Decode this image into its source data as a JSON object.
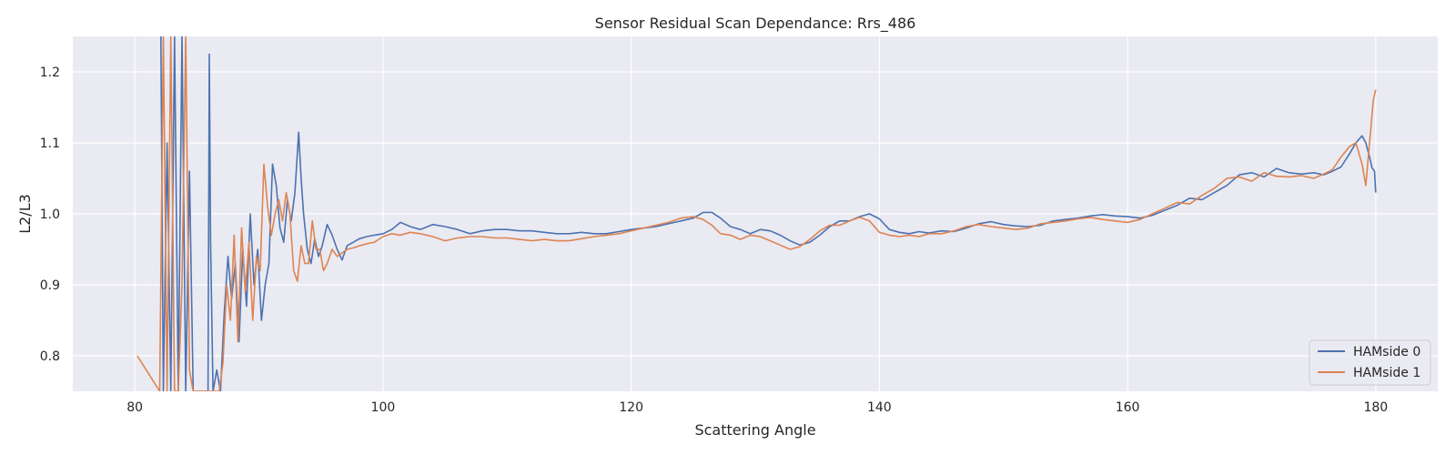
{
  "chart_data": {
    "type": "line",
    "title": "Sensor Residual Scan Dependance: Rrs_486",
    "xlabel": "Scattering Angle",
    "ylabel": "L2/L3",
    "xlim": [
      75,
      185
    ],
    "ylim": [
      0.75,
      1.25
    ],
    "xticks": [
      80,
      100,
      120,
      140,
      160,
      180
    ],
    "yticks": [
      0.8,
      0.9,
      1.0,
      1.1,
      1.2
    ],
    "grid": true,
    "legend_position": "lower right",
    "series": [
      {
        "name": "HAMside 0",
        "color": "#4c72b0",
        "x": [
          82.1,
          82.3,
          82.6,
          82.9,
          83.2,
          83.5,
          83.8,
          84.1,
          84.4,
          84.7,
          85.0,
          85.3,
          85.6,
          85.9,
          86.0,
          86.1,
          86.3,
          86.6,
          86.9,
          87.2,
          87.5,
          87.8,
          88.1,
          88.4,
          88.7,
          89.0,
          89.3,
          89.6,
          89.9,
          90.2,
          90.5,
          90.8,
          91.1,
          91.4,
          91.7,
          92.0,
          92.3,
          92.6,
          92.9,
          93.2,
          93.4,
          93.6,
          93.9,
          94.2,
          94.5,
          94.8,
          95.1,
          95.5,
          95.9,
          96.3,
          96.7,
          97.1,
          97.6,
          98.1,
          98.7,
          99.3,
          100.0,
          100.7,
          101.4,
          102.2,
          103.0,
          104.0,
          105.0,
          106.0,
          107.0,
          108.0,
          109.0,
          110.0,
          111.0,
          112.0,
          113.0,
          114.0,
          115.0,
          116.0,
          117.0,
          118.0,
          119.0,
          120.0,
          121.0,
          122.0,
          123.0,
          124.0,
          125.0,
          125.8,
          126.5,
          127.2,
          128.0,
          128.8,
          129.6,
          130.4,
          131.2,
          132.0,
          132.8,
          133.6,
          134.4,
          135.2,
          136.0,
          136.8,
          137.6,
          138.4,
          139.2,
          140.0,
          140.8,
          141.6,
          142.4,
          143.2,
          144.0,
          145.0,
          146.0,
          147.0,
          148.0,
          149.0,
          150.0,
          151.0,
          152.0,
          153.0,
          154.0,
          155.0,
          156.0,
          157.0,
          158.0,
          159.0,
          160.0,
          161.0,
          162.0,
          163.0,
          164.0,
          165.0,
          166.0,
          167.0,
          168.0,
          169.0,
          170.0,
          171.0,
          172.0,
          173.0,
          174.0,
          175.0,
          175.8,
          176.5,
          177.2,
          177.9,
          178.4,
          178.9,
          179.2,
          179.5,
          179.7,
          179.9,
          180.0
        ],
        "y": [
          1.25,
          0.75,
          1.1,
          0.75,
          1.25,
          0.75,
          1.25,
          0.75,
          1.06,
          0.75,
          0.75,
          0.75,
          0.75,
          0.75,
          1.225,
          0.96,
          0.75,
          0.78,
          0.75,
          0.86,
          0.94,
          0.88,
          0.93,
          0.82,
          0.95,
          0.87,
          1.0,
          0.9,
          0.95,
          0.85,
          0.9,
          0.93,
          1.07,
          1.04,
          0.98,
          0.96,
          1.02,
          0.99,
          1.03,
          1.115,
          1.05,
          1.0,
          0.95,
          0.93,
          0.965,
          0.94,
          0.955,
          0.985,
          0.97,
          0.95,
          0.935,
          0.955,
          0.96,
          0.965,
          0.968,
          0.97,
          0.972,
          0.978,
          0.988,
          0.982,
          0.978,
          0.985,
          0.982,
          0.978,
          0.972,
          0.976,
          0.978,
          0.978,
          0.976,
          0.976,
          0.974,
          0.972,
          0.972,
          0.974,
          0.972,
          0.972,
          0.975,
          0.978,
          0.98,
          0.982,
          0.986,
          0.99,
          0.994,
          1.002,
          1.002,
          0.994,
          0.982,
          0.978,
          0.972,
          0.978,
          0.976,
          0.97,
          0.962,
          0.956,
          0.96,
          0.97,
          0.982,
          0.99,
          0.99,
          0.996,
          1.0,
          0.993,
          0.978,
          0.974,
          0.972,
          0.975,
          0.973,
          0.976,
          0.975,
          0.98,
          0.986,
          0.989,
          0.985,
          0.983,
          0.982,
          0.984,
          0.99,
          0.992,
          0.994,
          0.997,
          0.999,
          0.997,
          0.996,
          0.994,
          0.998,
          1.005,
          1.012,
          1.022,
          1.02,
          1.03,
          1.04,
          1.055,
          1.058,
          1.052,
          1.064,
          1.058,
          1.056,
          1.058,
          1.055,
          1.06,
          1.066,
          1.085,
          1.1,
          1.11,
          1.1,
          1.08,
          1.065,
          1.06,
          1.03
        ]
      },
      {
        "name": "HAMside 1",
        "color": "#dd8452",
        "x": [
          80.2,
          82.0,
          82.3,
          82.6,
          82.9,
          83.2,
          83.5,
          83.8,
          84.1,
          84.4,
          84.7,
          85.0,
          85.3,
          85.6,
          85.9,
          86.2,
          86.5,
          86.8,
          87.1,
          87.4,
          87.7,
          88.0,
          88.3,
          88.6,
          88.9,
          89.2,
          89.5,
          89.8,
          90.1,
          90.4,
          90.7,
          91.0,
          91.3,
          91.6,
          91.9,
          92.2,
          92.5,
          92.8,
          93.1,
          93.4,
          93.7,
          94.0,
          94.3,
          94.6,
          94.9,
          95.2,
          95.5,
          95.9,
          96.3,
          96.7,
          97.1,
          97.6,
          98.1,
          98.7,
          99.3,
          100.0,
          100.7,
          101.4,
          102.2,
          103.0,
          104.0,
          105.0,
          106.0,
          107.0,
          108.0,
          109.0,
          110.0,
          111.0,
          112.0,
          113.0,
          114.0,
          115.0,
          116.0,
          117.0,
          118.0,
          119.0,
          120.0,
          121.0,
          122.0,
          123.0,
          124.0,
          125.0,
          125.8,
          126.5,
          127.2,
          128.0,
          128.8,
          129.6,
          130.4,
          131.2,
          132.0,
          132.8,
          133.6,
          134.4,
          135.2,
          136.0,
          136.8,
          137.6,
          138.4,
          139.2,
          140.0,
          140.8,
          141.6,
          142.4,
          143.2,
          144.0,
          145.0,
          146.0,
          147.0,
          148.0,
          149.0,
          150.0,
          151.0,
          152.0,
          153.0,
          154.0,
          155.0,
          156.0,
          157.0,
          158.0,
          159.0,
          160.0,
          161.0,
          162.0,
          163.0,
          164.0,
          165.0,
          166.0,
          167.0,
          168.0,
          169.0,
          170.0,
          171.0,
          172.0,
          173.0,
          174.0,
          175.0,
          175.8,
          176.5,
          177.2,
          177.9,
          178.4,
          178.9,
          179.2,
          179.4,
          179.6,
          179.8,
          180.0
        ],
        "y": [
          0.8,
          0.75,
          1.25,
          0.75,
          1.25,
          0.75,
          0.75,
          0.9,
          1.25,
          0.78,
          0.75,
          0.75,
          0.75,
          0.75,
          0.75,
          0.75,
          0.75,
          0.75,
          0.79,
          0.9,
          0.85,
          0.97,
          0.82,
          0.98,
          0.89,
          0.96,
          0.85,
          0.94,
          0.92,
          1.07,
          1.01,
          0.97,
          1.0,
          1.02,
          0.99,
          1.03,
          1.0,
          0.92,
          0.905,
          0.955,
          0.93,
          0.93,
          0.99,
          0.95,
          0.95,
          0.92,
          0.93,
          0.95,
          0.94,
          0.945,
          0.95,
          0.952,
          0.955,
          0.958,
          0.96,
          0.968,
          0.972,
          0.97,
          0.974,
          0.972,
          0.968,
          0.962,
          0.966,
          0.968,
          0.968,
          0.966,
          0.966,
          0.964,
          0.962,
          0.964,
          0.962,
          0.962,
          0.965,
          0.968,
          0.97,
          0.972,
          0.976,
          0.98,
          0.984,
          0.988,
          0.994,
          0.996,
          0.992,
          0.984,
          0.972,
          0.97,
          0.964,
          0.97,
          0.968,
          0.962,
          0.956,
          0.95,
          0.954,
          0.964,
          0.976,
          0.984,
          0.984,
          0.99,
          0.995,
          0.99,
          0.974,
          0.97,
          0.968,
          0.97,
          0.968,
          0.972,
          0.972,
          0.976,
          0.982,
          0.985,
          0.982,
          0.98,
          0.978,
          0.98,
          0.986,
          0.988,
          0.99,
          0.993,
          0.995,
          0.992,
          0.99,
          0.988,
          0.992,
          1.0,
          1.008,
          1.016,
          1.014,
          1.026,
          1.036,
          1.05,
          1.052,
          1.046,
          1.058,
          1.053,
          1.052,
          1.054,
          1.05,
          1.056,
          1.062,
          1.08,
          1.095,
          1.1,
          1.07,
          1.04,
          1.08,
          1.12,
          1.16,
          1.175
        ]
      }
    ]
  }
}
